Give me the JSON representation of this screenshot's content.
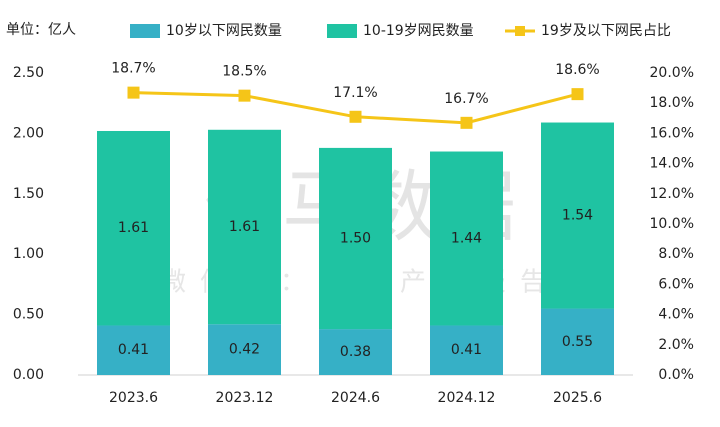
{
  "chart_data": {
    "type": "bar_line",
    "unit_label": "单位：亿人",
    "watermark": "伽马数据",
    "watermark_sub": "微信号：游戏产业报告",
    "categories": [
      "2023.6",
      "2023.12",
      "2024.6",
      "2024.12",
      "2025.6"
    ],
    "series": [
      {
        "name": "10岁以下网民数量",
        "color": "#36b0c6",
        "type": "bar",
        "values": [
          0.41,
          0.42,
          0.38,
          0.41,
          0.55
        ],
        "value_labels": [
          "0.41",
          "0.42",
          "0.38",
          "0.41",
          "0.55"
        ]
      },
      {
        "name": "10-19岁网民数量",
        "color": "#1fc3a2",
        "type": "bar",
        "values": [
          1.61,
          1.61,
          1.5,
          1.44,
          1.54
        ],
        "value_labels": [
          "1.61",
          "1.61",
          "1.50",
          "1.44",
          "1.54"
        ]
      },
      {
        "name": "19岁及以下网民占比",
        "color": "#f5c518",
        "type": "line",
        "axis": "y2",
        "values": [
          18.7,
          18.5,
          17.1,
          16.7,
          18.6
        ],
        "value_labels": [
          "18.7%",
          "18.5%",
          "17.1%",
          "16.7%",
          "18.6%"
        ]
      }
    ],
    "ylim": [
      0,
      2.5
    ],
    "yticks": [
      {
        "value": 0,
        "label": "0.00"
      },
      {
        "value": 0.5,
        "label": "0.50"
      },
      {
        "value": 1,
        "label": "1.00"
      },
      {
        "value": 1.5,
        "label": "1.50"
      },
      {
        "value": 2,
        "label": "2.00"
      },
      {
        "value": 2.5,
        "label": "2.50"
      }
    ],
    "y2lim": [
      0,
      20
    ],
    "y2ticks": [
      {
        "value": 0,
        "label": "0.0%"
      },
      {
        "value": 2,
        "label": "2.0%"
      },
      {
        "value": 4,
        "label": "4.0%"
      },
      {
        "value": 6,
        "label": "6.0%"
      },
      {
        "value": 8,
        "label": "8.0%"
      },
      {
        "value": 10,
        "label": "10.0%"
      },
      {
        "value": 12,
        "label": "12.0%"
      },
      {
        "value": 14,
        "label": "14.0%"
      },
      {
        "value": 16,
        "label": "16.0%"
      },
      {
        "value": 18,
        "label": "18.0%"
      },
      {
        "value": 20,
        "label": "20.0%"
      }
    ],
    "grid": false
  }
}
